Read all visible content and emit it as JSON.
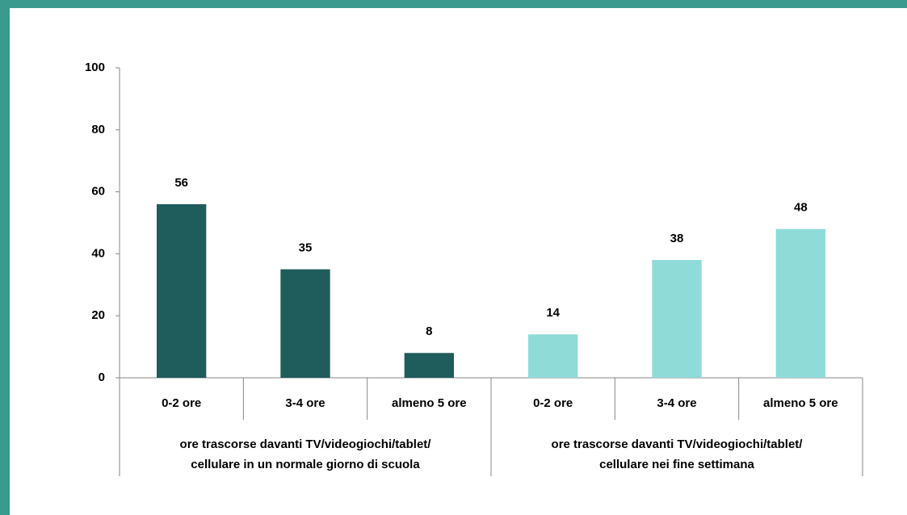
{
  "chart_data": {
    "type": "bar",
    "groups": [
      {
        "label": [
          "ore trascorse davanti TV/videogiochi/tablet/",
          "cellulare in un normale giorno di scuola"
        ],
        "categories": [
          "0-2 ore",
          "3-4 ore",
          "almeno 5 ore"
        ],
        "values": [
          56,
          35,
          8
        ],
        "color": "#1f5c5c"
      },
      {
        "label": [
          "ore trascorse davanti TV/videogiochi/tablet/",
          "cellulare nei fine settimana"
        ],
        "categories": [
          "0-2 ore",
          "3-4 ore",
          "almeno 5 ore"
        ],
        "values": [
          14,
          38,
          48
        ],
        "color": "#8fdbd8"
      }
    ],
    "ylim": [
      0,
      100
    ],
    "yticks": [
      0,
      20,
      40,
      60,
      80,
      100
    ],
    "grid": false
  }
}
